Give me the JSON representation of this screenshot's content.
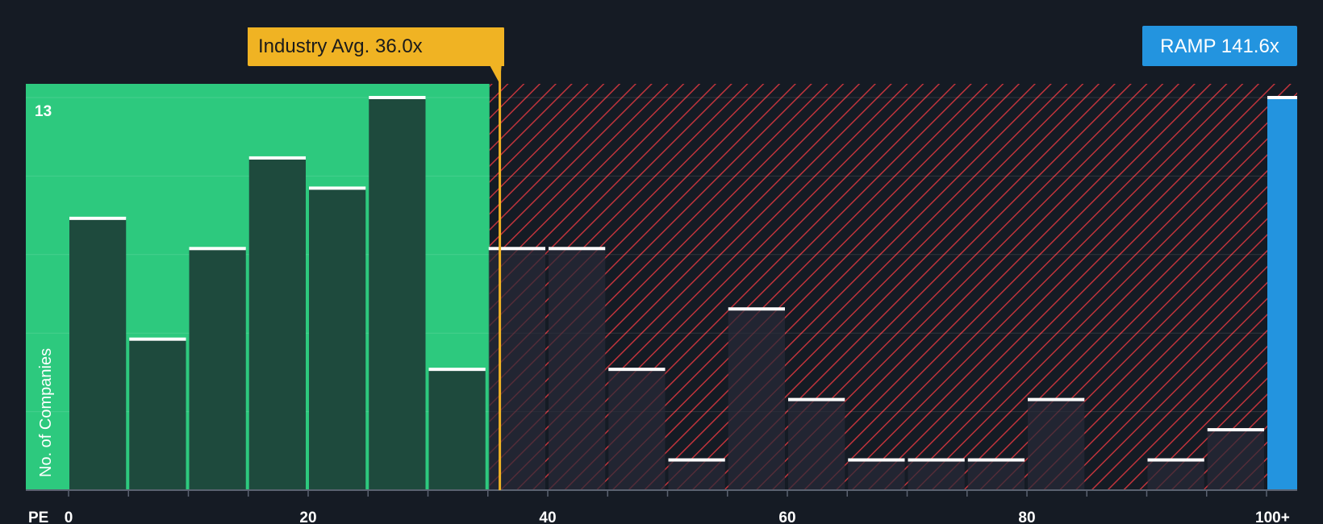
{
  "chart_data": {
    "type": "bar",
    "xlabel": "PE",
    "ylabel": "No. of Companies",
    "y_max_label": "13",
    "ylim": [
      0,
      13
    ],
    "x_ticks": [
      "0",
      "20",
      "40",
      "60",
      "80",
      "100+"
    ],
    "bins": [
      {
        "x0": 0,
        "x1": 5,
        "value": 9
      },
      {
        "x0": 5,
        "x1": 10,
        "value": 5
      },
      {
        "x0": 10,
        "x1": 15,
        "value": 8
      },
      {
        "x0": 15,
        "x1": 20,
        "value": 11
      },
      {
        "x0": 20,
        "x1": 25,
        "value": 10
      },
      {
        "x0": 25,
        "x1": 30,
        "value": 13
      },
      {
        "x0": 30,
        "x1": 35,
        "value": 4
      },
      {
        "x0": 35,
        "x1": 40,
        "value": 8
      },
      {
        "x0": 40,
        "x1": 45,
        "value": 8
      },
      {
        "x0": 45,
        "x1": 50,
        "value": 4
      },
      {
        "x0": 50,
        "x1": 55,
        "value": 1
      },
      {
        "x0": 55,
        "x1": 60,
        "value": 6
      },
      {
        "x0": 60,
        "x1": 65,
        "value": 3
      },
      {
        "x0": 65,
        "x1": 70,
        "value": 1
      },
      {
        "x0": 70,
        "x1": 75,
        "value": 1
      },
      {
        "x0": 75,
        "x1": 80,
        "value": 1
      },
      {
        "x0": 80,
        "x1": 85,
        "value": 3
      },
      {
        "x0": 90,
        "x1": 95,
        "value": 1
      },
      {
        "x0": 95,
        "x1": 100,
        "value": 2
      }
    ],
    "fair_range_max": 35,
    "industry_avg": {
      "label": "Industry Avg. 36.0x",
      "value": 36.0
    },
    "company": {
      "label": "RAMP 141.6x",
      "value": 141.6,
      "count": 13
    },
    "colors": {
      "background": "#151b24",
      "fair_zone": "#2dc97e",
      "bar_fair": "#1e4a3d",
      "bar_over": "#222530",
      "hatch": "#c0343c",
      "avg_line": "#f0b323",
      "company": "#2394df",
      "bar_cap": "#ffffff"
    }
  }
}
